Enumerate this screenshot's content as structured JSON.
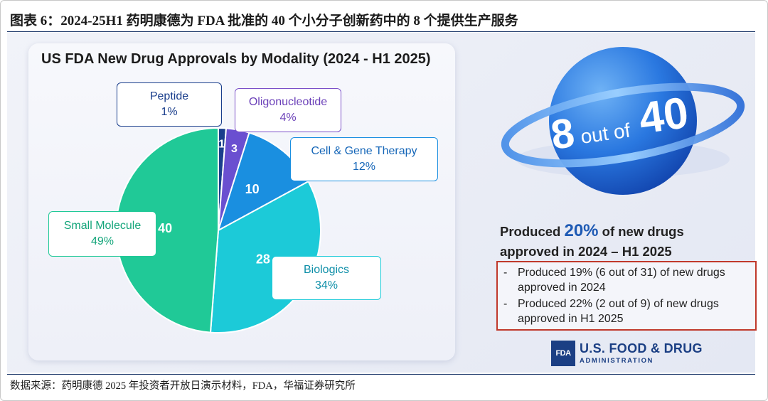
{
  "figure": {
    "title": "图表 6：2024-25H1 药明康德为 FDA 批准的 40 个小分子创新药中的 8 个提供生产服务",
    "source": "数据来源：药明康德 2025 年投资者开放日演示材料，FDA，华福证券研究所"
  },
  "chart_data": {
    "type": "pie",
    "title": "US FDA New Drug Approvals by Modality (2024 - H1 2025)",
    "slices": [
      {
        "label": "Peptide",
        "value": 1,
        "percent": "1%",
        "color": "#1a3e8c"
      },
      {
        "label": "Oligonucleotide",
        "value": 3,
        "percent": "4%",
        "color": "#6a4fd0"
      },
      {
        "label": "Cell & Gene Therapy",
        "value": 10,
        "percent": "12%",
        "color": "#1a8fe0"
      },
      {
        "label": "Biologics",
        "value": 28,
        "percent": "34%",
        "color": "#1ccad8"
      },
      {
        "label": "Small Molecule",
        "value": 40,
        "percent": "49%",
        "color": "#20c997"
      }
    ],
    "start_angle_deg": 0,
    "direction": "clockwise"
  },
  "labels": {
    "peptide": {
      "name": "Peptide",
      "pct": "1%",
      "border": "#1a3e8c",
      "color": "#1a3e8c"
    },
    "oligo": {
      "name": "Oligonucleotide",
      "pct": "4%",
      "border": "#7a4fc8",
      "color": "#6a3fb8"
    },
    "cgt": {
      "name": "Cell & Gene Therapy",
      "pct": "12%",
      "border": "#1a8fe0",
      "color": "#1566b8"
    },
    "bio": {
      "name": "Biologics",
      "pct": "34%",
      "border": "#1ccad8",
      "color": "#0e8fa8"
    },
    "small": {
      "name": "Small Molecule",
      "pct": "49%",
      "border": "#20c997",
      "color": "#13a57a"
    }
  },
  "badge": {
    "big": "8",
    "mid": "out of",
    "num": "40"
  },
  "summary": {
    "line1_pre": "Produced",
    "line1_highlight": "20%",
    "line1_post": "of new drugs",
    "line2": "approved in 2024 – H1 2025",
    "highlight_color": "#1e5ab4"
  },
  "bullets": [
    {
      "dash": "-",
      "text": "Produced 19% (6 out of 31) of new drugs approved in 2024"
    },
    {
      "dash": "-",
      "text": "Produced 22% (2 out of 9) of new drugs approved in H1 2025"
    }
  ],
  "fda": {
    "mark": "FDA",
    "name": "U.S. FOOD & DRUG",
    "sub": "ADMINISTRATION"
  }
}
